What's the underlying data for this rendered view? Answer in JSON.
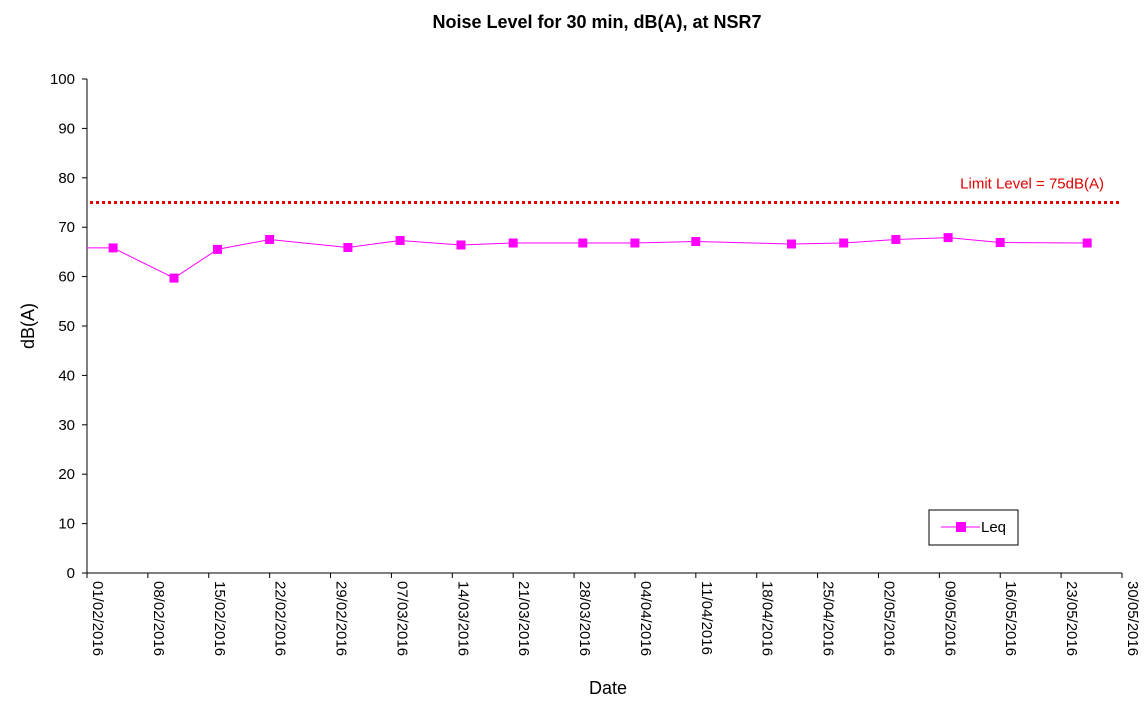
{
  "chart_data": {
    "type": "line",
    "title": "Noise Level for 30 min, dB(A), at NSR7",
    "xlabel": "Date",
    "ylabel": "dB(A)",
    "ylim": [
      0,
      100
    ],
    "yticks": [
      0,
      10,
      20,
      30,
      40,
      50,
      60,
      70,
      80,
      90,
      100
    ],
    "xlim": [
      "01/02/2016",
      "30/05/2016"
    ],
    "xticks": [
      "01/02/2016",
      "08/02/2016",
      "15/02/2016",
      "22/02/2016",
      "29/02/2016",
      "07/03/2016",
      "14/03/2016",
      "21/03/2016",
      "28/03/2016",
      "04/04/2016",
      "11/04/2016",
      "18/04/2016",
      "25/04/2016",
      "02/05/2016",
      "09/05/2016",
      "16/05/2016",
      "23/05/2016",
      "30/05/2016"
    ],
    "grid": false,
    "legend": "bottom-right",
    "series": [
      {
        "name": "Leq",
        "color": "#ff00ff",
        "marker": "square",
        "x": [
          "04/02/2016",
          "11/02/2016",
          "16/02/2016",
          "22/02/2016",
          "02/03/2016",
          "08/03/2016",
          "15/03/2016",
          "21/03/2016",
          "29/03/2016",
          "04/04/2016",
          "11/04/2016",
          "22/04/2016",
          "28/04/2016",
          "04/05/2016",
          "10/05/2016",
          "16/05/2016",
          "26/05/2016"
        ],
        "y": [
          65.8,
          59.7,
          65.5,
          67.5,
          65.9,
          67.3,
          66.4,
          66.8,
          66.8,
          66.8,
          67.1,
          66.6,
          66.8,
          67.5,
          67.9,
          66.9,
          66.8
        ]
      }
    ],
    "reference_line": {
      "label": "Limit Level = 75dB(A)",
      "value": 75,
      "color": "#e00000",
      "style": "dotted"
    }
  }
}
